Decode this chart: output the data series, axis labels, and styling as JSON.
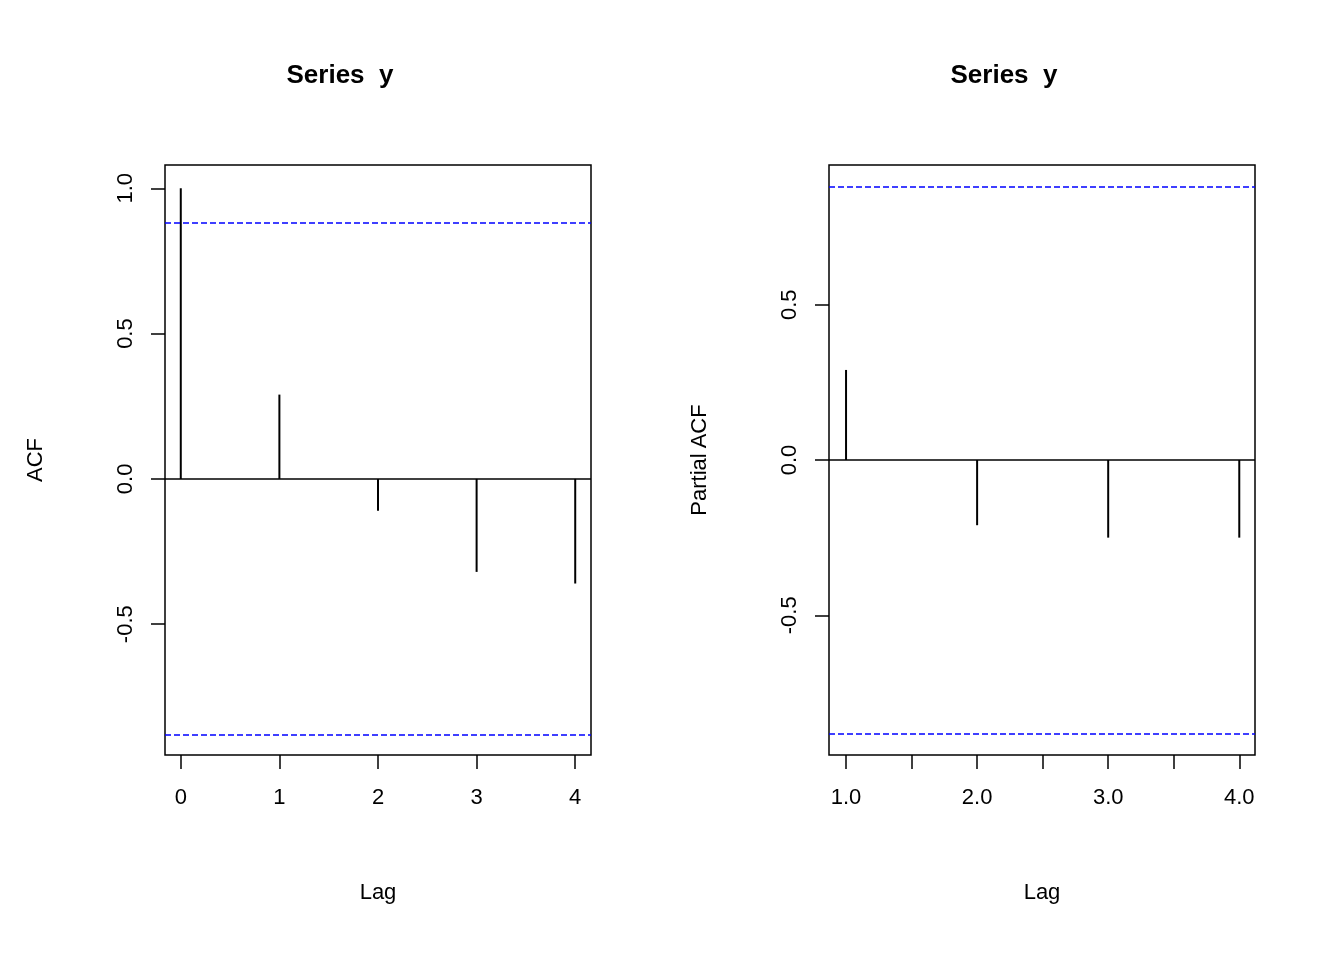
{
  "chart_data": [
    {
      "type": "bar",
      "title": "Series  y",
      "xlabel": "Lag",
      "ylabel": "ACF",
      "color": "#000000",
      "x": [
        0,
        1,
        2,
        3,
        4
      ],
      "values": [
        1.0,
        0.29,
        -0.11,
        -0.32,
        -0.36
      ],
      "xlim": [
        -0.16,
        4.16
      ],
      "ylim": [
        -0.95,
        1.08
      ],
      "xticks": [
        0,
        1,
        2,
        3,
        4
      ],
      "yticks": [
        {
          "value": -0.5,
          "label": "-0.5"
        },
        {
          "value": 0,
          "label": "0.0"
        },
        {
          "value": 0.5,
          "label": "0.5"
        },
        {
          "value": 1,
          "label": "1.0"
        }
      ],
      "ref_lines": [
        {
          "axis": "y",
          "value": 0,
          "color": "#000000",
          "line_style": "solid"
        },
        {
          "axis": "y",
          "value": 0.88,
          "color": "#0000ff",
          "line_style": "dashed"
        },
        {
          "axis": "y",
          "value": -0.88,
          "color": "#0000ff",
          "line_style": "dashed"
        }
      ]
    },
    {
      "type": "bar",
      "title": "Series  y",
      "xlabel": "Lag",
      "ylabel": "Partial ACF",
      "color": "#000000",
      "x": [
        1,
        2,
        3,
        4
      ],
      "values": [
        0.29,
        -0.21,
        -0.25,
        -0.25
      ],
      "xlim": [
        0.87,
        4.12
      ],
      "ylim": [
        -0.95,
        0.95
      ],
      "xticks": [
        {
          "value": 1,
          "label": "1.0"
        },
        {
          "value": 1.5,
          "label": null
        },
        {
          "value": 2,
          "label": "2.0"
        },
        {
          "value": 2.5,
          "label": null
        },
        {
          "value": 3,
          "label": "3.0"
        },
        {
          "value": 3.5,
          "label": null
        },
        {
          "value": 4,
          "label": "4.0"
        }
      ],
      "yticks": [
        {
          "value": -0.5,
          "label": "-0.5"
        },
        {
          "value": 0,
          "label": "0.0"
        },
        {
          "value": 0.5,
          "label": "0.5"
        }
      ],
      "ref_lines": [
        {
          "axis": "y",
          "value": 0,
          "color": "#000000",
          "line_style": "solid"
        },
        {
          "axis": "y",
          "value": 0.88,
          "color": "#0000ff",
          "line_style": "dashed"
        },
        {
          "axis": "y",
          "value": -0.88,
          "color": "#0000ff",
          "line_style": "dashed"
        }
      ]
    }
  ]
}
